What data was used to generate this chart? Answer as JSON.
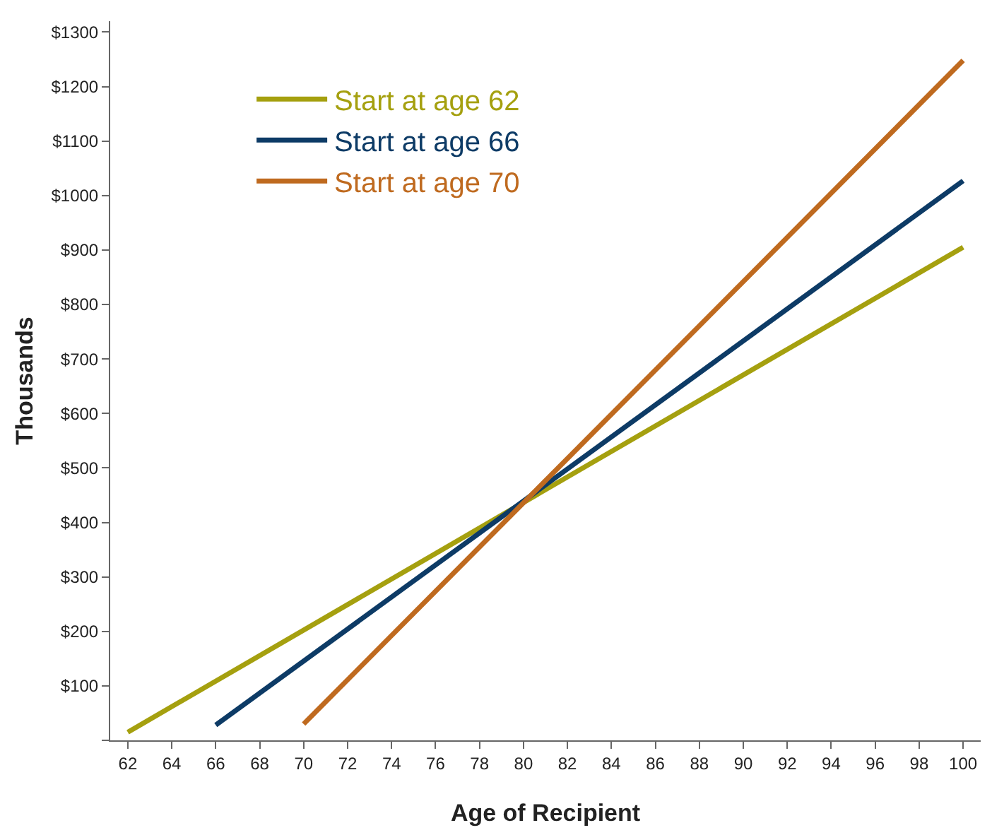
{
  "chart_data": {
    "type": "line",
    "xlabel": "Age of Recipient",
    "ylabel": "Thousands",
    "series": [
      {
        "name": "Start at age 62",
        "color": "#a5a00f",
        "x": [
          62,
          100
        ],
        "values": [
          15,
          905
        ]
      },
      {
        "name": "Start at age 66",
        "color": "#0d3b66",
        "x": [
          66,
          100
        ],
        "values": [
          28,
          1027
        ]
      },
      {
        "name": "Start at age 70",
        "color": "#bf6a1f",
        "x": [
          70,
          100
        ],
        "values": [
          30,
          1248
        ]
      }
    ],
    "xlim": [
      61.2,
      100.8
    ],
    "xticks": [
      62,
      64,
      66,
      68,
      70,
      72,
      74,
      76,
      78,
      80,
      82,
      84,
      86,
      88,
      90,
      92,
      94,
      96,
      98,
      100
    ],
    "ylim": [
      0,
      1320
    ],
    "yticks": [
      {
        "value": 0,
        "label": null
      },
      {
        "value": 100,
        "label": "$100"
      },
      {
        "value": 200,
        "label": "$200"
      },
      {
        "value": 300,
        "label": "$300"
      },
      {
        "value": 400,
        "label": "$400"
      },
      {
        "value": 500,
        "label": "$500"
      },
      {
        "value": 600,
        "label": "$600"
      },
      {
        "value": 700,
        "label": "$700"
      },
      {
        "value": 800,
        "label": "$800"
      },
      {
        "value": 900,
        "label": "$900"
      },
      {
        "value": 1000,
        "label": "$1000"
      },
      {
        "value": 1100,
        "label": "$1100"
      },
      {
        "value": 1200,
        "label": "$1200"
      },
      {
        "value": 1300,
        "label": "$1300"
      }
    ],
    "grid": false,
    "legend": "top left",
    "marker": "none",
    "line_style": "solid"
  }
}
